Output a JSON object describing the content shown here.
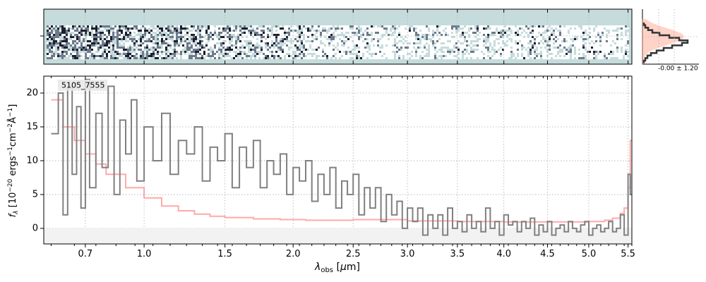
{
  "chart_data": [
    {
      "type": "line",
      "panel": "1d-spectrum",
      "object_label": "5105_7555",
      "xlabel_tex": [
        "λ",
        "obs",
        " [",
        "μ",
        "m]"
      ],
      "ylabel_tex": [
        "f",
        "λ",
        " [10",
        "−20",
        " ergs",
        "−1",
        "cm",
        "−2",
        "Å",
        "−1",
        "]"
      ],
      "x_scale": "sqrt",
      "xlim": [
        0.52,
        5.55
      ],
      "ylim": [
        -2.3,
        22.5
      ],
      "xticks": [
        0.7,
        1.0,
        1.5,
        2.0,
        2.5,
        3.0,
        3.5,
        4.0,
        4.5,
        5.0,
        5.5
      ],
      "xtick_labels": [
        "0.7",
        "1.0",
        "1.5",
        "2.0",
        "2.5",
        "3.0",
        "3.5",
        "4.0",
        "4.5",
        "5.0",
        "5.5"
      ],
      "yticks": [
        0,
        5,
        10,
        15,
        20
      ],
      "ytick_labels": [
        "0",
        "5",
        "10",
        "15",
        "20"
      ],
      "grid": true,
      "zero_line": true,
      "series": [
        {
          "role": "flux",
          "color": "#808080",
          "x": [
            0.55,
            0.58,
            0.6,
            0.62,
            0.64,
            0.66,
            0.68,
            0.7,
            0.72,
            0.75,
            0.78,
            0.81,
            0.84,
            0.87,
            0.9,
            0.93,
            0.96,
            1.0,
            1.05,
            1.1,
            1.15,
            1.2,
            1.25,
            1.3,
            1.35,
            1.4,
            1.45,
            1.5,
            1.55,
            1.6,
            1.65,
            1.7,
            1.75,
            1.8,
            1.85,
            1.9,
            1.95,
            2.0,
            2.05,
            2.1,
            2.15,
            2.2,
            2.25,
            2.3,
            2.35,
            2.4,
            2.45,
            2.5,
            2.55,
            2.6,
            2.65,
            2.7,
            2.75,
            2.8,
            2.85,
            2.9,
            2.95,
            3.0,
            3.05,
            3.1,
            3.15,
            3.2,
            3.25,
            3.3,
            3.35,
            3.4,
            3.45,
            3.5,
            3.55,
            3.6,
            3.65,
            3.7,
            3.75,
            3.8,
            3.85,
            3.9,
            3.95,
            4.0,
            4.05,
            4.1,
            4.15,
            4.2,
            4.25,
            4.3,
            4.35,
            4.4,
            4.45,
            4.5,
            4.55,
            4.6,
            4.65,
            4.7,
            4.75,
            4.8,
            4.85,
            4.9,
            4.95,
            5.0,
            5.05,
            5.1,
            5.15,
            5.2,
            5.25,
            5.3,
            5.35,
            5.4,
            5.45,
            5.5,
            5.53
          ],
          "y": [
            14,
            20,
            2,
            21,
            8,
            18,
            3,
            22,
            6,
            17,
            9,
            21,
            5,
            16,
            11,
            19,
            7,
            15,
            10,
            17,
            8,
            13,
            11,
            15,
            7,
            12,
            10,
            14,
            6,
            12,
            9,
            13,
            6,
            10,
            8,
            11,
            5,
            9,
            7,
            10,
            4,
            8,
            5,
            9,
            3,
            7,
            5,
            8,
            2,
            6,
            3,
            6,
            1,
            5,
            2,
            4,
            0,
            3,
            1,
            3,
            -1,
            2,
            0,
            2,
            -1,
            3,
            0,
            1,
            -0.5,
            2,
            0,
            1,
            -0.5,
            3,
            0,
            1,
            -1,
            2,
            0.5,
            1,
            -0.5,
            1,
            0,
            1.5,
            -1,
            0.5,
            -0.5,
            1,
            -1,
            0,
            0.5,
            -0.5,
            1,
            0,
            -0.5,
            0.5,
            1,
            -1,
            0,
            0.5,
            -0.5,
            0,
            1,
            -0.5,
            0,
            2,
            -1,
            8,
            5
          ]
        },
        {
          "role": "uncertainty",
          "color": "#ff9a9a",
          "x": [
            0.55,
            0.6,
            0.65,
            0.7,
            0.75,
            0.8,
            0.9,
            1.0,
            1.1,
            1.2,
            1.3,
            1.4,
            1.5,
            1.7,
            1.9,
            2.1,
            2.3,
            2.5,
            3.0,
            3.5,
            4.0,
            4.5,
            5.0,
            5.2,
            5.3,
            5.4,
            5.45,
            5.5,
            5.53
          ],
          "y": [
            19,
            15,
            13,
            11,
            9.5,
            8,
            6,
            4.5,
            3.3,
            2.6,
            2.1,
            1.8,
            1.6,
            1.4,
            1.3,
            1.2,
            1.2,
            1.3,
            1.1,
            1.0,
            0.95,
            0.95,
            1.0,
            1.2,
            1.5,
            2.2,
            3,
            6,
            13
          ]
        }
      ]
    },
    {
      "type": "heatmap",
      "panel": "2d-spectrum",
      "colormap": [
        "#1b1f2e",
        "#6c7a8c",
        "#c6dcdc",
        "#ffffff"
      ],
      "background": "#c6dcdc"
    },
    {
      "type": "line",
      "panel": "pixel-distribution",
      "annotation": "-0.00 ± 1.20",
      "series": [
        {
          "role": "histogram",
          "color": "#333333"
        },
        {
          "role": "gaussian-fit",
          "color": "#ffb09a"
        }
      ]
    }
  ]
}
